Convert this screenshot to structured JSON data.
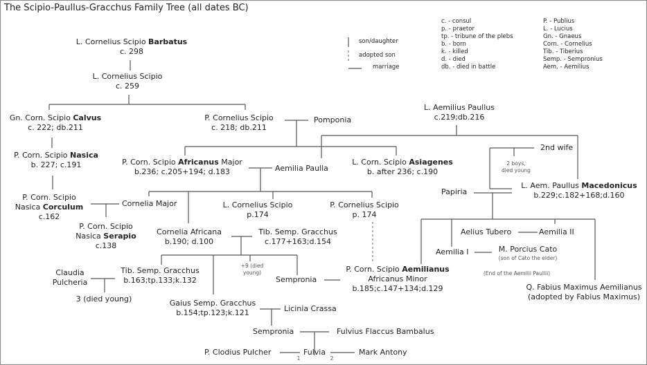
{
  "title": "The Scipio-Paullus-Gracchus Family Tree (all dates BC)",
  "legend": {
    "line_types": [
      {
        "label": "son/daughter",
        "style": "solid-vertical"
      },
      {
        "label": "adopted son",
        "style": "dashed-vertical"
      },
      {
        "label": "marriage",
        "style": "horizontal"
      }
    ],
    "abbreviations_titles": [
      "c. - consul",
      "p. - praetor",
      "tp. - tribune of the plebs",
      "b. - born",
      "k. - killed",
      "d. - died",
      "db. - died in battle"
    ],
    "abbreviations_names": [
      "P. - Publius",
      "L. - Lucius",
      "Gn. - Gnaeus",
      "Corn. - Cornelius",
      "Tib. - Tiberius",
      "Semp. - Sempronius",
      "Aem. - Aemilius"
    ]
  },
  "nodes": {
    "barbatus": [
      {
        "pre": "L. Cornelius Scipio ",
        "bold": "Barbatus"
      },
      {
        "pre": "c. 298"
      }
    ],
    "scipio259": [
      {
        "pre": "L. Cornelius Scipio"
      },
      {
        "pre": "c. 259"
      }
    ],
    "calvus": [
      {
        "pre": "Gn. Corn. Scipio ",
        "bold": "Calvus"
      },
      {
        "pre": "c. 222; db.211"
      }
    ],
    "pcs218": [
      {
        "pre": "P. Cornelius Scipio"
      },
      {
        "pre": "c. 218; db.211"
      }
    ],
    "pomponia": [
      {
        "pre": "Pomponia"
      }
    ],
    "aemilius": [
      {
        "pre": "L. Aemilius Paullus"
      },
      {
        "pre": "c.219;db.216"
      }
    ],
    "nasica": [
      {
        "pre": "P. Corn. Scipio ",
        "bold": "Nasica"
      },
      {
        "pre": "b. 227; c.191"
      }
    ],
    "africanus": [
      {
        "pre": "P. Corn. Scipio ",
        "bold": "Africanus",
        "post": " Major"
      },
      {
        "pre": "b.236; c.205+194; d.183"
      }
    ],
    "aemiliapaulla": [
      {
        "pre": "Aemilia Paulla"
      }
    ],
    "asiagenes": [
      {
        "pre": "L. Corn. Scipio ",
        "bold": "Asiagenes"
      },
      {
        "pre": "b. after 236; c.190"
      }
    ],
    "wife2": [
      {
        "pre": "2nd wife"
      }
    ],
    "boys": [
      {
        "pre": "2 boys,"
      },
      {
        "pre": "died young"
      }
    ],
    "papiria": [
      {
        "pre": "Papiria"
      }
    ],
    "macedonicus": [
      {
        "pre": "L. Aem. Paullus ",
        "bold": "Macedonicus"
      },
      {
        "pre": "b.229;c.182+168;d.160"
      }
    ],
    "corculum": [
      {
        "pre": "P. Corn. Scipio"
      },
      {
        "pre": "Nasica ",
        "bold": "Corculum"
      },
      {
        "pre": "c.162"
      }
    ],
    "corneliamajor": [
      {
        "pre": "Cornelia Major"
      }
    ],
    "lcs174": [
      {
        "pre": "L. Cornelius Scipio"
      },
      {
        "pre": "p.174"
      }
    ],
    "pcs174": [
      {
        "pre": "P. Cornelius Scipio"
      },
      {
        "pre": "p. 174"
      }
    ],
    "serapio": [
      {
        "pre": "P. Corn. Scipio"
      },
      {
        "pre": "Nasica ",
        "bold": "Serapio"
      },
      {
        "pre": "c.138"
      }
    ],
    "africana": [
      {
        "pre": "Cornelia Africana"
      },
      {
        "pre": "b.190; d.100"
      }
    ],
    "tibsg": [
      {
        "pre": "Tib. Semp. Gracchus"
      },
      {
        "pre": "c.177+163;d.154"
      }
    ],
    "tubero": [
      {
        "pre": "Aelius Tubero"
      }
    ],
    "aemilia2": [
      {
        "pre": "Aemilia II"
      }
    ],
    "aemilia1": [
      {
        "pre": "Aemilia I"
      }
    ],
    "cato": [
      {
        "pre": "M. Porcius Cato"
      }
    ],
    "catonote": [
      {
        "pre": "(son of Cato the elder)"
      }
    ],
    "plus9": [
      {
        "pre": "+9 (died"
      },
      {
        "pre": "young)"
      }
    ],
    "claudia": [
      {
        "pre": "Claudia"
      },
      {
        "pre": "Pulcheria"
      }
    ],
    "tib163": [
      {
        "pre": "Tib. Semp. Gracchus"
      },
      {
        "pre": "b.163;tp.133;k.132"
      }
    ],
    "sempronia1": [
      {
        "pre": "Sempronia"
      }
    ],
    "aemilianus": [
      {
        "pre": "P. Corn. Scipio ",
        "bold": "Aemilianus"
      },
      {
        "pre": "Africanus Minor"
      },
      {
        "pre": "b.185;c.147+134;d.129"
      }
    ],
    "endnote": [
      {
        "pre": "(End of the Aemilii Paullii)"
      }
    ],
    "fabius": [
      {
        "pre": "Q. Fabius Maximus Aemilianus"
      },
      {
        "pre": "(adopted by Fabius Maximus)"
      }
    ],
    "died3": [
      {
        "pre": "3 (died young)"
      }
    ],
    "gaius": [
      {
        "pre": "Gaius Semp. Gracchus"
      },
      {
        "pre": "b.154;tp.123;k.121"
      }
    ],
    "licinia": [
      {
        "pre": "Licinia Crassa"
      }
    ],
    "sempronia2": [
      {
        "pre": "Sempronia"
      }
    ],
    "fulvius": [
      {
        "pre": "Fulvius Flaccus Bambalus"
      }
    ],
    "clodius": [
      {
        "pre": "P. Clodius Pulcher"
      }
    ],
    "fulvia": [
      {
        "pre": "Fulvia"
      }
    ],
    "antony": [
      {
        "pre": "Mark Antony"
      }
    ],
    "marriage1": [
      {
        "pre": "1"
      }
    ],
    "marriage2": [
      {
        "pre": "2"
      }
    ]
  }
}
